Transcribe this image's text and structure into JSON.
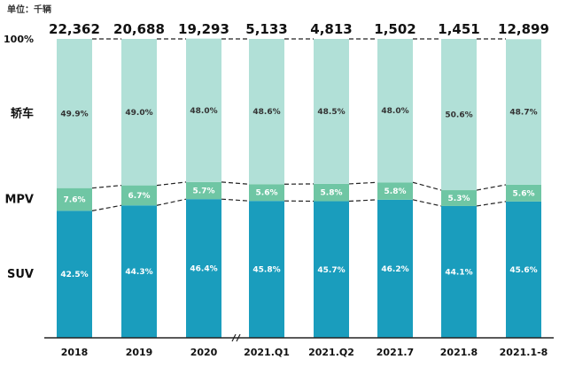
{
  "unit_label": "单位：千辆",
  "chart_data": {
    "type": "bar",
    "stacked": "100%",
    "categories": [
      "2018",
      "2019",
      "2020",
      "2021.Q1",
      "2021.Q2",
      "2021.7",
      "2021.8",
      "2021.1-8"
    ],
    "totals": [
      "22,362",
      "20,688",
      "19,293",
      "5,133",
      "4,813",
      "1,502",
      "1,451",
      "12,899"
    ],
    "series": [
      {
        "name": "SUV",
        "values": [
          42.5,
          44.3,
          46.4,
          45.8,
          45.7,
          46.2,
          44.1,
          45.6
        ],
        "labels": [
          "42.5%",
          "44.3%",
          "46.4%",
          "45.8%",
          "45.7%",
          "46.2%",
          "44.1%",
          "45.6%"
        ],
        "color": "#1a9dbd",
        "text_color": "#ffffff"
      },
      {
        "name": "MPV",
        "values": [
          7.6,
          6.7,
          5.7,
          5.6,
          5.8,
          5.8,
          5.3,
          5.6
        ],
        "labels": [
          "7.6%",
          "6.7%",
          "5.7%",
          "5.6%",
          "5.8%",
          "5.8%",
          "5.3%",
          "5.6%"
        ],
        "color": "#6fc6a4",
        "text_color": "#ffffff"
      },
      {
        "name": "轿车",
        "values": [
          49.9,
          49.0,
          48.0,
          48.6,
          48.5,
          48.0,
          50.6,
          48.7
        ],
        "labels": [
          "49.9%",
          "49.0%",
          "48.0%",
          "48.6%",
          "48.5%",
          "48.0%",
          "50.6%",
          "48.7%"
        ],
        "color": "#b1e0d7",
        "text_color": "#333333"
      }
    ],
    "ylabel_top": "100%",
    "ylim": [
      0,
      100
    ],
    "axis_break": "//",
    "grid": false,
    "legend": "left"
  }
}
